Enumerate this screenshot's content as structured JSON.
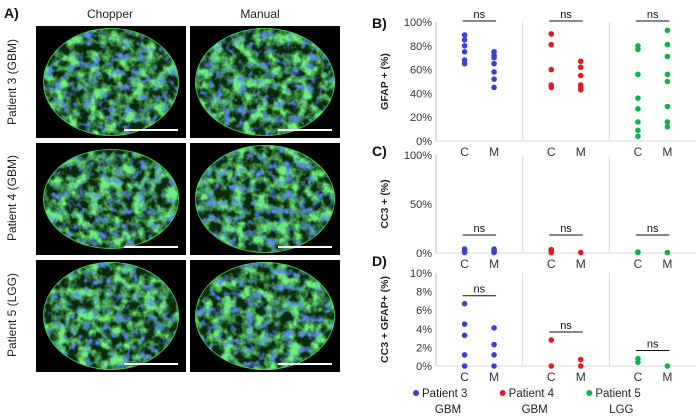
{
  "figure": {
    "panel_letters": [
      "A)",
      "B)",
      "C)",
      "D)"
    ],
    "micrographs": {
      "columns": [
        "Chopper",
        "Manual"
      ],
      "rows": [
        "Patient 3 (GBM)",
        "Patient 4 (GBM)",
        "Patient 5 (LGG)"
      ]
    },
    "group_labels": [
      "C",
      "M"
    ],
    "significance_label": "ns",
    "legend": [
      {
        "name": "Patient 3",
        "sub": "GBM",
        "color": "#3f3fcf"
      },
      {
        "name": "Patient 4",
        "sub": "GBM",
        "color": "#e01b24"
      },
      {
        "name": "Patient 5",
        "sub": "LGG",
        "color": "#12b050"
      }
    ]
  },
  "chart_data": [
    {
      "type": "scatter",
      "panel": "B)",
      "ylabel": "GFAP + (%)",
      "ylim": [
        0,
        100
      ],
      "yticks": [
        "0%",
        "20%",
        "40%",
        "60%",
        "80%",
        "100%"
      ],
      "categories": [
        "C",
        "M"
      ],
      "series": [
        {
          "name": "Patient 3",
          "color": "#3f3fcf",
          "C": [
            89,
            85,
            80,
            75,
            68,
            65
          ],
          "M": [
            75,
            72,
            70,
            65,
            58,
            52,
            45
          ]
        },
        {
          "name": "Patient 4",
          "color": "#e01b24",
          "C": [
            90,
            81,
            60,
            47,
            45
          ],
          "M": [
            67,
            62,
            55,
            47,
            45,
            43
          ]
        },
        {
          "name": "Patient 5",
          "color": "#12b050",
          "C": [
            80,
            77,
            56,
            36,
            27,
            16,
            9,
            4
          ],
          "M": [
            93,
            81,
            71,
            56,
            50,
            29,
            16,
            12
          ]
        }
      ]
    },
    {
      "type": "scatter",
      "panel": "C)",
      "ylabel": "CC3 + (%)",
      "ylim": [
        0,
        100
      ],
      "yticks": [
        "0%",
        "50%",
        "100%"
      ],
      "categories": [
        "C",
        "M"
      ],
      "series": [
        {
          "name": "Patient 3",
          "color": "#3f3fcf",
          "C": [
            4,
            2,
            0.5
          ],
          "M": [
            4,
            2.5,
            1,
            0.5
          ]
        },
        {
          "name": "Patient 4",
          "color": "#e01b24",
          "C": [
            3.5,
            2.5,
            1.5,
            0.5
          ],
          "M": [
            0.5
          ]
        },
        {
          "name": "Patient 5",
          "color": "#12b050",
          "C": [
            1,
            0.5
          ],
          "M": [
            0.5
          ]
        }
      ]
    },
    {
      "type": "scatter",
      "panel": "D)",
      "ylabel": "CC3 + GFAP+ (%)",
      "ylim": [
        0,
        10
      ],
      "yticks": [
        "0%",
        "2%",
        "4%",
        "6%",
        "8%",
        "10%"
      ],
      "categories": [
        "C",
        "M"
      ],
      "series": [
        {
          "name": "Patient 3",
          "color": "#3f3fcf",
          "C": [
            6.7,
            4.5,
            3.3,
            1.2,
            0
          ],
          "M": [
            4.1,
            2.3,
            1.2,
            0
          ]
        },
        {
          "name": "Patient 4",
          "color": "#e01b24",
          "C": [
            2.8,
            0
          ],
          "M": [
            0.7,
            0
          ]
        },
        {
          "name": "Patient 5",
          "color": "#12b050",
          "C": [
            0.8,
            0.4
          ],
          "M": [
            0
          ]
        }
      ]
    }
  ]
}
